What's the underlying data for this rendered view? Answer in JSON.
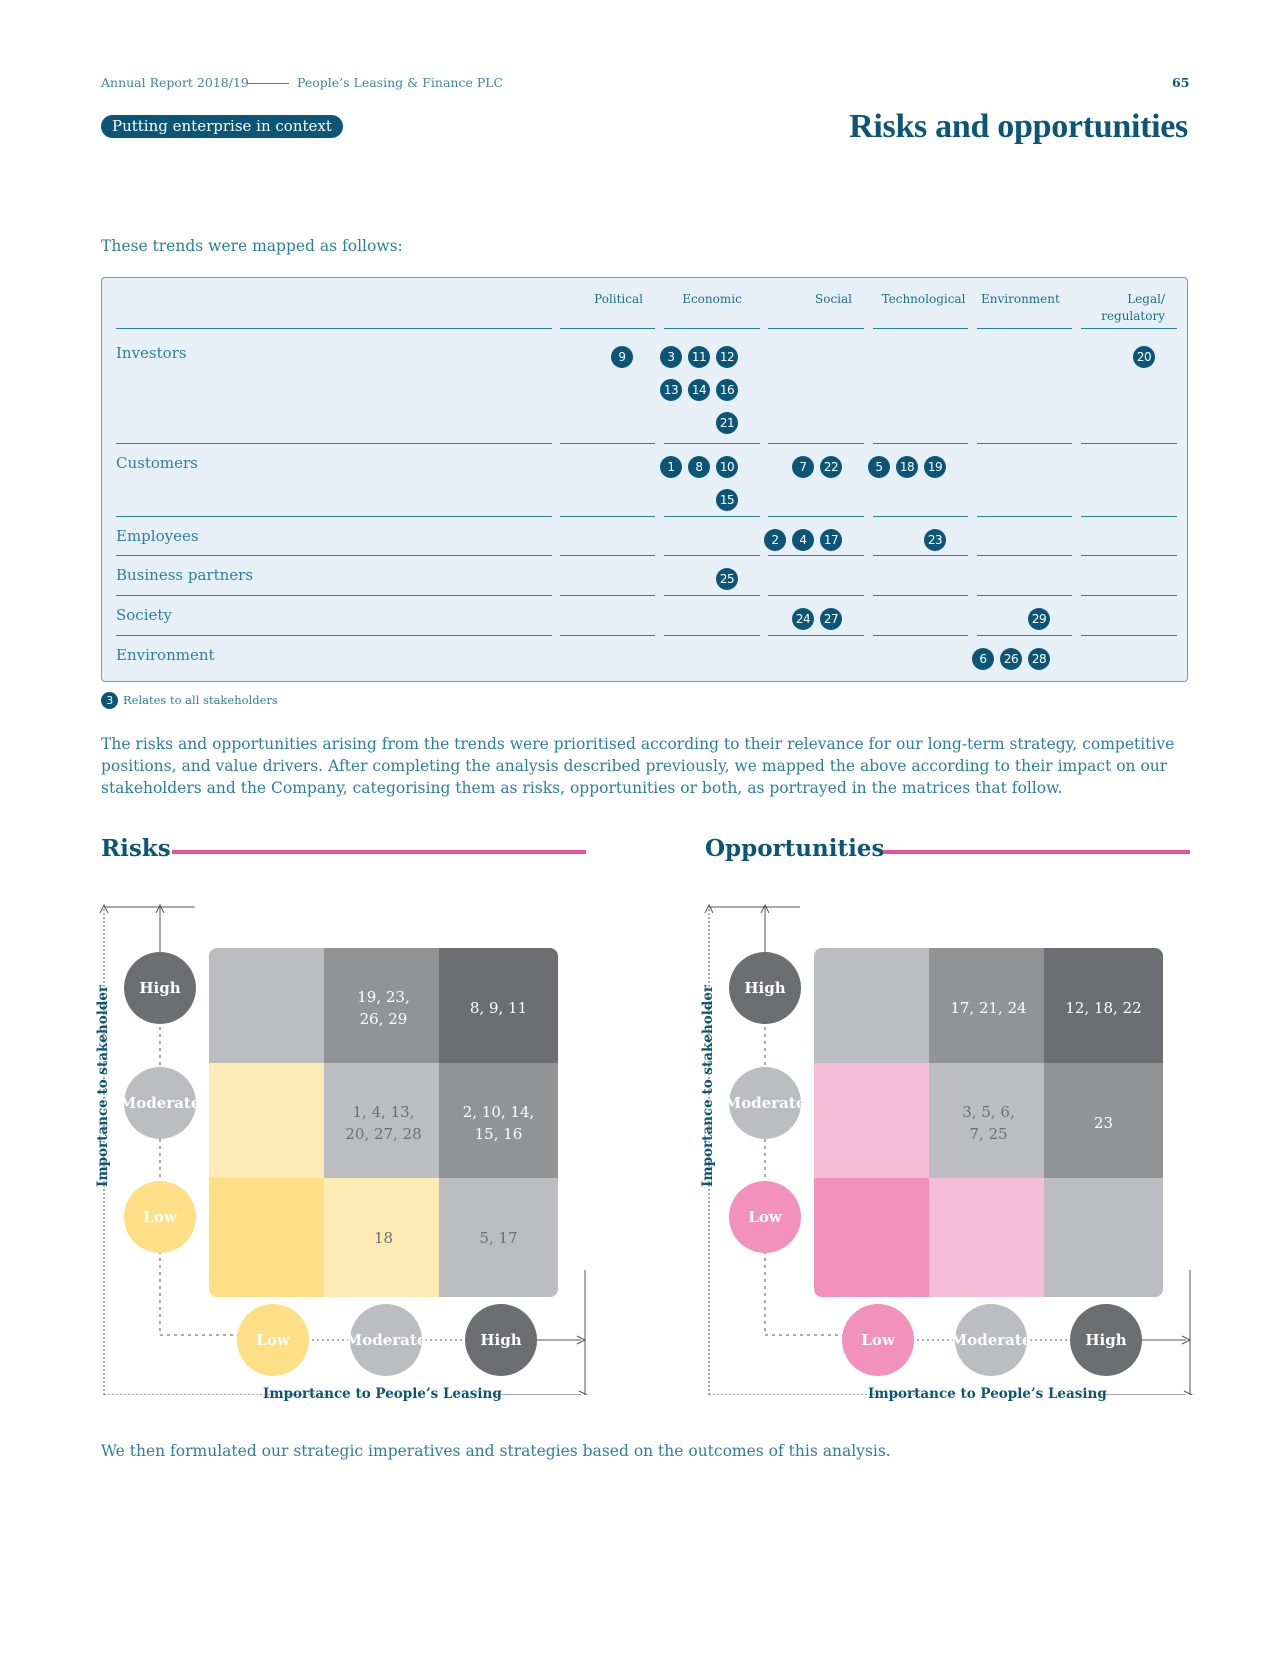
{
  "header": {
    "report": "Annual Report 2018/19",
    "company": "People’s Leasing & Finance PLC",
    "page_number": "65"
  },
  "section_tag": "Putting enterprise in context",
  "page_title": "Risks and opportunities",
  "intro": "These trends were mapped as follows:",
  "mapping_table": {
    "columns": [
      "Political",
      "Economic",
      "Social",
      "Technological",
      "Environment",
      "Legal/ regulatory"
    ],
    "rows": [
      {
        "label": "Investors",
        "cells": [
          [
            "9"
          ],
          [
            "3",
            "11",
            "12",
            "13",
            "14",
            "16",
            "21"
          ],
          [],
          [],
          [],
          [
            "20"
          ]
        ]
      },
      {
        "label": "Customers",
        "cells": [
          [],
          [
            "1",
            "8",
            "10",
            "15"
          ],
          [
            "7",
            "22"
          ],
          [
            "5",
            "18",
            "19"
          ],
          [],
          []
        ]
      },
      {
        "label": "Employees",
        "cells": [
          [],
          [],
          [
            "2",
            "4",
            "17"
          ],
          [
            "23"
          ],
          [],
          []
        ]
      },
      {
        "label": "Business partners",
        "cells": [
          [],
          [
            "25"
          ],
          [],
          [],
          [],
          []
        ]
      },
      {
        "label": "Society",
        "cells": [
          [],
          [],
          [
            "24",
            "27"
          ],
          [],
          [
            "29"
          ],
          []
        ]
      },
      {
        "label": "Environment",
        "cells": [
          [],
          [],
          [],
          [],
          [
            "6",
            "26",
            "28"
          ],
          []
        ]
      }
    ]
  },
  "legend": {
    "number": "3",
    "text": "Relates to all stakeholders"
  },
  "body_paragraph": "The risks and opportunities arising from the trends were prioritised according to their relevance for our long-term strategy, competitive positions, and value drivers. After completing the analysis described previously, we mapped the above according to their impact on our stakeholders and the Company, categorising them as risks, opportunities or both, as portrayed in the matrices that follow.",
  "risks_matrix": {
    "title": "Risks",
    "y_axis_label": "Importance to stakeholder",
    "x_axis_label": "Importance to People’s Leasing",
    "levels": [
      "Low",
      "Moderate",
      "High"
    ],
    "grid": {
      "high_row": [
        "",
        "19, 23,\n26, 29",
        "8, 9, 11"
      ],
      "moderate_row": [
        "",
        "1, 4, 13,\n20, 27, 28",
        "2, 10, 14,\n15, 16"
      ],
      "low_row": [
        "",
        "18",
        "5, 17"
      ]
    },
    "colors": {
      "high_row": [
        "#bcbdc0",
        "#929395",
        "#6d6e71"
      ],
      "moderate_row": [
        "#feeab5",
        "#bcbdc0",
        "#929395"
      ],
      "low_row": [
        "#fedf85",
        "#feeab5",
        "#bcbdc0"
      ],
      "low_circle": "#fedf85",
      "moderate_circle": "#bcbdc0",
      "high_circle": "#6d6e71"
    }
  },
  "opportunities_matrix": {
    "title": "Opportunities",
    "y_axis_label": "Importance to stakeholder",
    "x_axis_label": "Importance to People’s Leasing",
    "levels": [
      "Low",
      "Moderate",
      "High"
    ],
    "grid": {
      "high_row": [
        "",
        "17, 21, 24",
        "12, 18, 22"
      ],
      "moderate_row": [
        "",
        "3, 5, 6,\n7, 25",
        "23"
      ],
      "low_row": [
        "",
        "",
        ""
      ]
    },
    "colors": {
      "high_row": [
        "#bcbdc0",
        "#929395",
        "#6d6e71"
      ],
      "moderate_row": [
        "#f6bed6",
        "#bcbdc0",
        "#929395"
      ],
      "low_row": [
        "#f291bd",
        "#f6bed6",
        "#bcbdc0"
      ],
      "low_circle": "#f291bd",
      "moderate_circle": "#bcbdc0",
      "high_circle": "#6d6e71"
    }
  },
  "closing": "We then formulated our strategic imperatives and strategies based on the outcomes of this analysis."
}
